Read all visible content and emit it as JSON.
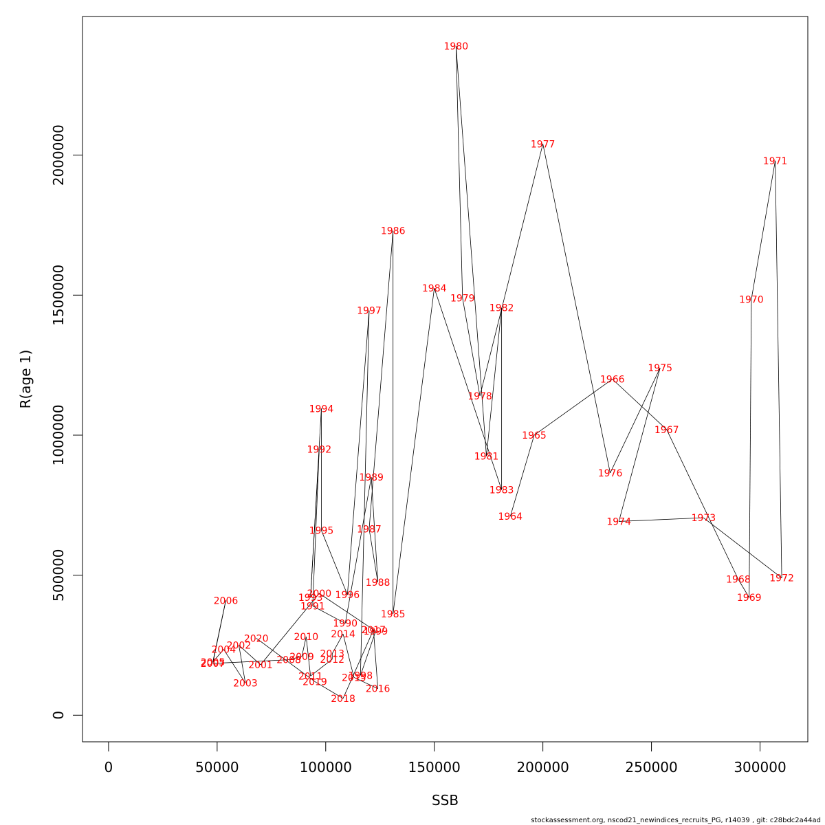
{
  "chart_data": {
    "type": "scatter",
    "connected": true,
    "xlabel": "SSB",
    "ylabel": "R(age 1)",
    "xlim": [
      -12000,
      322000
    ],
    "ylim": [
      -95000,
      2495000
    ],
    "xticks": [
      0,
      50000,
      100000,
      150000,
      200000,
      250000,
      300000
    ],
    "xtick_labels": [
      "0",
      "50000",
      "100000",
      "150000",
      "200000",
      "250000",
      "300000"
    ],
    "yticks": [
      0,
      500000,
      1000000,
      1500000,
      2000000
    ],
    "ytick_labels": [
      "0",
      "500000",
      "1000000",
      "1500000",
      "2000000"
    ],
    "grid": false,
    "line_color": "#000000",
    "label_color": "#ff0000",
    "points": [
      {
        "year": "1964",
        "x": 185000,
        "y": 710000
      },
      {
        "year": "1965",
        "x": 196000,
        "y": 1000000
      },
      {
        "year": "1966",
        "x": 232000,
        "y": 1200000
      },
      {
        "year": "1967",
        "x": 257000,
        "y": 1020000
      },
      {
        "year": "1968",
        "x": 290000,
        "y": 485000
      },
      {
        "year": "1969",
        "x": 295000,
        "y": 420000
      },
      {
        "year": "1970",
        "x": 296000,
        "y": 1485000
      },
      {
        "year": "1971",
        "x": 307000,
        "y": 1980000
      },
      {
        "year": "1972",
        "x": 310000,
        "y": 490000
      },
      {
        "year": "1973",
        "x": 274000,
        "y": 705000
      },
      {
        "year": "1974",
        "x": 235000,
        "y": 692000
      },
      {
        "year": "1975",
        "x": 254000,
        "y": 1240000
      },
      {
        "year": "1976",
        "x": 231000,
        "y": 865000
      },
      {
        "year": "1977",
        "x": 200000,
        "y": 2040000
      },
      {
        "year": "1978",
        "x": 171000,
        "y": 1140000
      },
      {
        "year": "1979",
        "x": 163000,
        "y": 1490000
      },
      {
        "year": "1980",
        "x": 160000,
        "y": 2390000
      },
      {
        "year": "1981",
        "x": 174000,
        "y": 925000
      },
      {
        "year": "1982",
        "x": 181000,
        "y": 1455000
      },
      {
        "year": "1983",
        "x": 181000,
        "y": 805000
      },
      {
        "year": "1984",
        "x": 150000,
        "y": 1525000
      },
      {
        "year": "1985",
        "x": 131000,
        "y": 362000
      },
      {
        "year": "1986",
        "x": 131000,
        "y": 1730000
      },
      {
        "year": "1987",
        "x": 120000,
        "y": 665000
      },
      {
        "year": "1988",
        "x": 124000,
        "y": 475000
      },
      {
        "year": "1989",
        "x": 121000,
        "y": 850000
      },
      {
        "year": "1990",
        "x": 109000,
        "y": 328000
      },
      {
        "year": "1991",
        "x": 94000,
        "y": 390000
      },
      {
        "year": "1992",
        "x": 97000,
        "y": 950000
      },
      {
        "year": "1993",
        "x": 93000,
        "y": 420000
      },
      {
        "year": "1994",
        "x": 98000,
        "y": 1095000
      },
      {
        "year": "1995",
        "x": 98000,
        "y": 660000
      },
      {
        "year": "1996",
        "x": 110000,
        "y": 430000
      },
      {
        "year": "1997",
        "x": 120000,
        "y": 1445000
      },
      {
        "year": "1998",
        "x": 116000,
        "y": 142000
      },
      {
        "year": "1999",
        "x": 123000,
        "y": 300000
      },
      {
        "year": "2000",
        "x": 97000,
        "y": 435000
      },
      {
        "year": "2001",
        "x": 70000,
        "y": 180000
      },
      {
        "year": "2002",
        "x": 60000,
        "y": 250000
      },
      {
        "year": "2003",
        "x": 63000,
        "y": 115000
      },
      {
        "year": "2004",
        "x": 53000,
        "y": 235000
      },
      {
        "year": "2005",
        "x": 48000,
        "y": 190000
      },
      {
        "year": "2006",
        "x": 54000,
        "y": 410000
      },
      {
        "year": "2007",
        "x": 48000,
        "y": 185000
      },
      {
        "year": "2008",
        "x": 83000,
        "y": 198000
      },
      {
        "year": "2009",
        "x": 89000,
        "y": 210000
      },
      {
        "year": "2010",
        "x": 91000,
        "y": 280000
      },
      {
        "year": "2011",
        "x": 93000,
        "y": 140000
      },
      {
        "year": "2012",
        "x": 103000,
        "y": 200000
      },
      {
        "year": "2013",
        "x": 103000,
        "y": 220000
      },
      {
        "year": "2014",
        "x": 108000,
        "y": 290000
      },
      {
        "year": "2015",
        "x": 113000,
        "y": 135000
      },
      {
        "year": "2016",
        "x": 124000,
        "y": 95000
      },
      {
        "year": "2017",
        "x": 122000,
        "y": 305000
      },
      {
        "year": "2018",
        "x": 108000,
        "y": 60000
      },
      {
        "year": "2019",
        "x": 95000,
        "y": 120000
      },
      {
        "year": "2020",
        "x": 68000,
        "y": 275000
      }
    ]
  },
  "footer": "stockassessment.org, nscod21_newindices_recruits_PG, r14039 , git: c28bdc2a44ad"
}
